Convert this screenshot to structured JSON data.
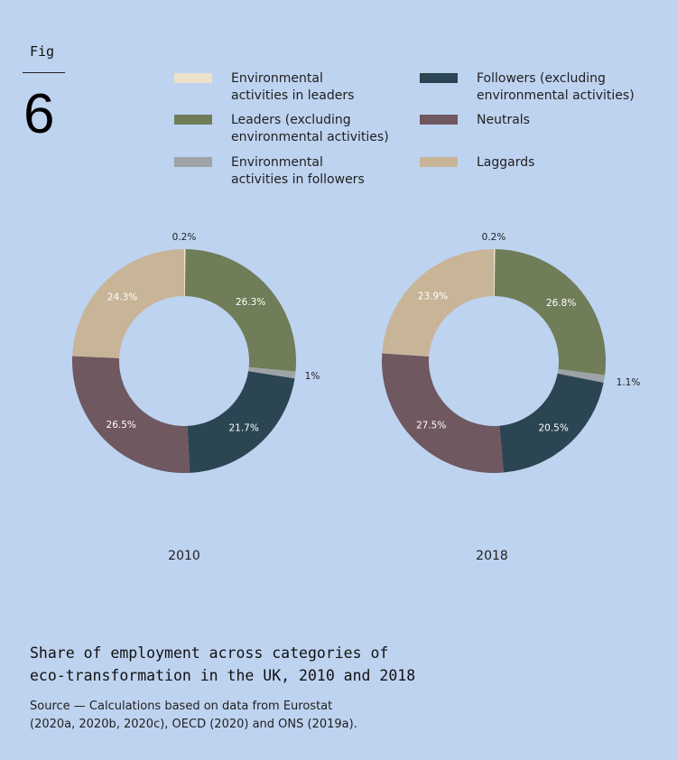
{
  "figure": {
    "label": "Fig",
    "number": "6"
  },
  "legend": [
    {
      "label": "Environmental\nactivities in leaders",
      "color": "#ede0cc"
    },
    {
      "label": "Followers (excluding\nenvironmental activities)",
      "color": "#2b4552"
    },
    {
      "label": "Leaders (excluding\nenvironmental activities)",
      "color": "#6f7d58"
    },
    {
      "label": "Neutrals",
      "color": "#6f5860"
    },
    {
      "label": "Environmental\nactivities in followers",
      "color": "#9ea3a6"
    },
    {
      "label": "Laggards",
      "color": "#c8b597"
    }
  ],
  "chart_data": [
    {
      "type": "donut",
      "title": "2010",
      "categories": [
        "Environmental activities in leaders",
        "Leaders (excluding environmental activities)",
        "Environmental activities in followers",
        "Followers (excluding environmental activities)",
        "Neutrals",
        "Laggards"
      ],
      "values": [
        0.2,
        26.3,
        1,
        21.7,
        26.5,
        24.3
      ],
      "labels": [
        "0.2%",
        "26.3%",
        "1%",
        "21.7%",
        "26.5%",
        "24.3%"
      ],
      "colors": [
        "#ede0cc",
        "#6f7d58",
        "#9ea3a6",
        "#2b4552",
        "#6f5860",
        "#c8b597"
      ]
    },
    {
      "type": "donut",
      "title": "2018",
      "categories": [
        "Environmental activities in leaders",
        "Leaders (excluding environmental activities)",
        "Environmental activities in followers",
        "Followers (excluding environmental activities)",
        "Neutrals",
        "Laggards"
      ],
      "values": [
        0.2,
        26.8,
        1.1,
        20.5,
        27.5,
        23.9
      ],
      "labels": [
        "0.2%",
        "26.8%",
        "1.1%",
        "20.5%",
        "27.5%",
        "23.9%"
      ],
      "colors": [
        "#ede0cc",
        "#6f7d58",
        "#9ea3a6",
        "#2b4552",
        "#6f5860",
        "#c8b597"
      ]
    }
  ],
  "caption": {
    "title": "Share of employment across categories of\neco-transformation in the UK, 2010 and 2018",
    "source": "Source — Calculations based on data from Eurostat\n(2020a, 2020b, 2020c), OECD (2020) and ONS (2019a)."
  }
}
